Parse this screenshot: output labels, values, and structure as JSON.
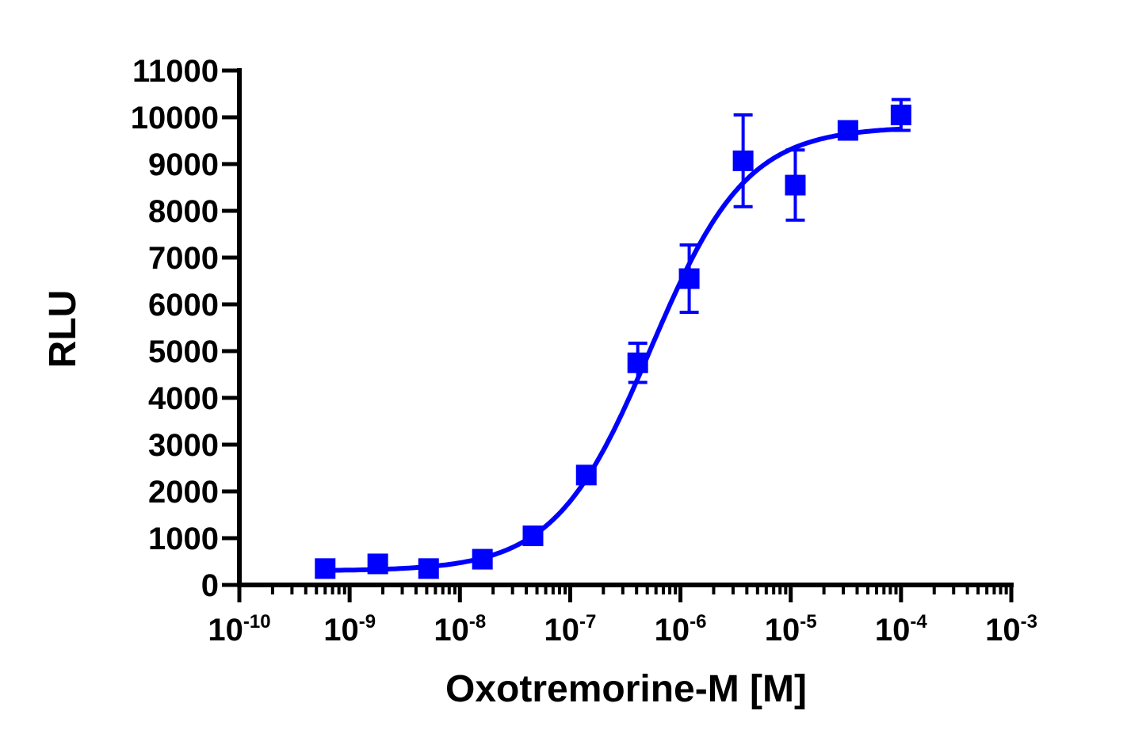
{
  "chart_data": {
    "type": "scatter",
    "xlabel": "Oxotremorine-M [M]",
    "ylabel": "RLU",
    "x_scale": "log10",
    "xlim": [
      1e-10,
      0.001
    ],
    "ylim": [
      0,
      11000
    ],
    "grid": false,
    "y_ticks": [
      "0",
      "1000",
      "2000",
      "3000",
      "4000",
      "5000",
      "6000",
      "7000",
      "8000",
      "9000",
      "10000",
      "11000"
    ],
    "x_ticks": [
      {
        "base": "10",
        "exp": "-10"
      },
      {
        "base": "10",
        "exp": "-9"
      },
      {
        "base": "10",
        "exp": "-8"
      },
      {
        "base": "10",
        "exp": "-7"
      },
      {
        "base": "10",
        "exp": "-6"
      },
      {
        "base": "10",
        "exp": "-5"
      },
      {
        "base": "10",
        "exp": "-4"
      },
      {
        "base": "10",
        "exp": "-3"
      }
    ],
    "series": [
      {
        "color": "#0000ff",
        "marker": "square",
        "points": [
          {
            "x": 6e-10,
            "y": 350,
            "err": 0
          },
          {
            "x": 1.8e-09,
            "y": 450,
            "err": 0
          },
          {
            "x": 5.2e-09,
            "y": 350,
            "err": 0
          },
          {
            "x": 1.6e-08,
            "y": 550,
            "err": 0
          },
          {
            "x": 4.6e-08,
            "y": 1050,
            "err": 0
          },
          {
            "x": 1.4e-07,
            "y": 2350,
            "err": 0
          },
          {
            "x": 4.1e-07,
            "y": 4750,
            "err": 420
          },
          {
            "x": 1.2e-06,
            "y": 6550,
            "err": 720
          },
          {
            "x": 3.7e-06,
            "y": 9070,
            "err": 980
          },
          {
            "x": 1.1e-05,
            "y": 8550,
            "err": 750
          },
          {
            "x": 3.3e-05,
            "y": 9720,
            "err": 0
          },
          {
            "x": 0.0001,
            "y": 10050,
            "err": 330
          }
        ],
        "fit": {
          "model": "four-parameter logistic",
          "bottom": 300,
          "top": 9800,
          "logEC50": -6.27,
          "hill": 1.0,
          "x_range": [
            6e-10,
            0.0001
          ]
        }
      }
    ]
  }
}
